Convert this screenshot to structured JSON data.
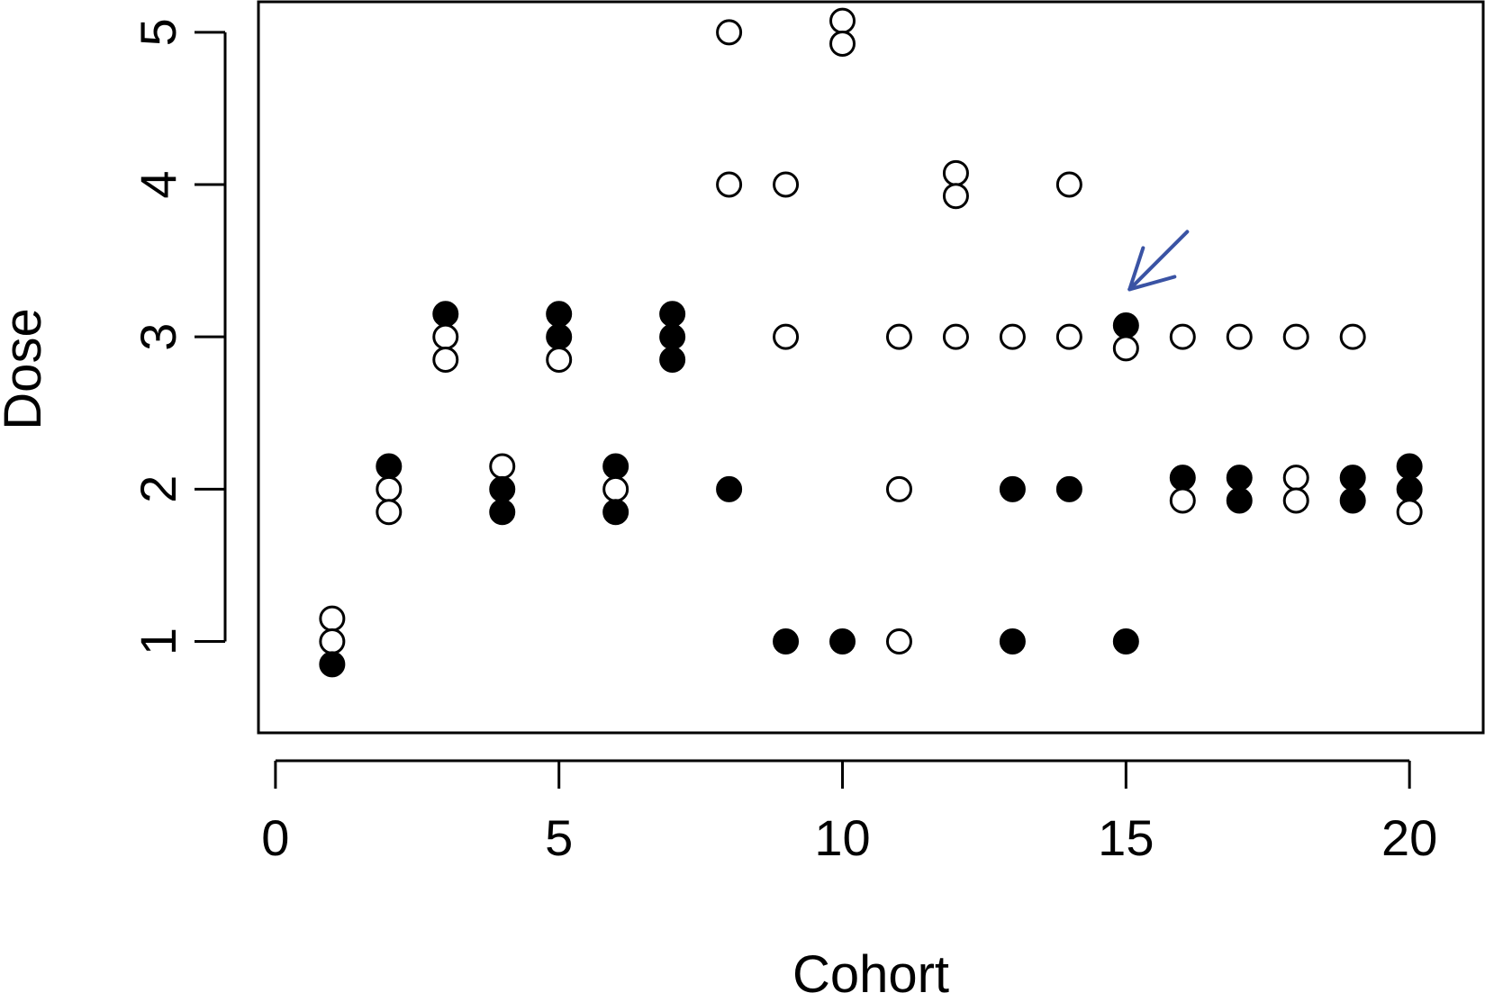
{
  "chart_data": {
    "type": "scatter",
    "title": "",
    "xlabel": "Cohort",
    "ylabel": "Dose",
    "xlim": [
      -0.3,
      21.3
    ],
    "ylim": [
      0.4,
      5.2
    ],
    "x_ticks": [
      0,
      5,
      10,
      15,
      20
    ],
    "x_tick_labels": [
      "0",
      "5",
      "10",
      "15",
      "20"
    ],
    "y_ticks": [
      1,
      2,
      3,
      4,
      5
    ],
    "y_tick_labels": [
      "1",
      "2",
      "3",
      "4",
      "5"
    ],
    "grid": false,
    "legend": "none",
    "colors": {
      "marker": "#000000",
      "arrow": "#3a53a4"
    },
    "marker_encoding": {
      "filled": "filled circle",
      "open": "open circle"
    },
    "cohorts": [
      {
        "cohort": 1,
        "dose": 1,
        "patients": [
          "open",
          "open",
          "filled"
        ]
      },
      {
        "cohort": 2,
        "dose": 2,
        "patients": [
          "filled",
          "open",
          "open"
        ]
      },
      {
        "cohort": 3,
        "dose": 3,
        "patients": [
          "filled",
          "open",
          "open"
        ]
      },
      {
        "cohort": 4,
        "dose": 2,
        "patients": [
          "open",
          "filled",
          "filled"
        ]
      },
      {
        "cohort": 5,
        "dose": 3,
        "patients": [
          "filled",
          "filled",
          "open"
        ]
      },
      {
        "cohort": 6,
        "dose": 2,
        "patients": [
          "filled",
          "open",
          "filled"
        ]
      },
      {
        "cohort": 7,
        "dose": 3,
        "patients": [
          "filled",
          "filled",
          "filled"
        ]
      },
      {
        "cohort": 8,
        "dose": 5,
        "patients": [
          "open"
        ]
      },
      {
        "cohort": 8,
        "dose": 4,
        "patients": [
          "open"
        ]
      },
      {
        "cohort": 8,
        "dose": 2,
        "patients": [
          "filled"
        ]
      },
      {
        "cohort": 9,
        "dose": 4,
        "patients": [
          "open"
        ]
      },
      {
        "cohort": 9,
        "dose": 3,
        "patients": [
          "open"
        ]
      },
      {
        "cohort": 9,
        "dose": 1,
        "patients": [
          "filled"
        ]
      },
      {
        "cohort": 10,
        "dose": 5,
        "patients": [
          "open",
          "open"
        ]
      },
      {
        "cohort": 10,
        "dose": 1,
        "patients": [
          "filled"
        ]
      },
      {
        "cohort": 11,
        "dose": 3,
        "patients": [
          "open"
        ]
      },
      {
        "cohort": 11,
        "dose": 2,
        "patients": [
          "open"
        ]
      },
      {
        "cohort": 11,
        "dose": 1,
        "patients": [
          "open"
        ]
      },
      {
        "cohort": 12,
        "dose": 4,
        "patients": [
          "open",
          "open"
        ]
      },
      {
        "cohort": 12,
        "dose": 3,
        "patients": [
          "open"
        ]
      },
      {
        "cohort": 13,
        "dose": 3,
        "patients": [
          "open"
        ]
      },
      {
        "cohort": 13,
        "dose": 2,
        "patients": [
          "filled"
        ]
      },
      {
        "cohort": 13,
        "dose": 1,
        "patients": [
          "filled"
        ]
      },
      {
        "cohort": 14,
        "dose": 4,
        "patients": [
          "open"
        ]
      },
      {
        "cohort": 14,
        "dose": 3,
        "patients": [
          "open"
        ]
      },
      {
        "cohort": 14,
        "dose": 2,
        "patients": [
          "filled"
        ]
      },
      {
        "cohort": 15,
        "dose": 3,
        "patients": [
          "filled",
          "open"
        ]
      },
      {
        "cohort": 15,
        "dose": 1,
        "patients": [
          "filled"
        ]
      },
      {
        "cohort": 16,
        "dose": 3,
        "patients": [
          "open"
        ]
      },
      {
        "cohort": 16,
        "dose": 2,
        "patients": [
          "filled",
          "open"
        ]
      },
      {
        "cohort": 17,
        "dose": 3,
        "patients": [
          "open"
        ]
      },
      {
        "cohort": 17,
        "dose": 2,
        "patients": [
          "filled",
          "filled"
        ]
      },
      {
        "cohort": 18,
        "dose": 3,
        "patients": [
          "open"
        ]
      },
      {
        "cohort": 18,
        "dose": 2,
        "patients": [
          "open",
          "open"
        ]
      },
      {
        "cohort": 19,
        "dose": 3,
        "patients": [
          "open"
        ]
      },
      {
        "cohort": 19,
        "dose": 2,
        "patients": [
          "filled",
          "filled"
        ]
      },
      {
        "cohort": 20,
        "dose": 2,
        "patients": [
          "filled",
          "filled",
          "open"
        ]
      }
    ],
    "annotations": [
      {
        "type": "arrow",
        "points_to": {
          "cohort": 15,
          "dose": 3,
          "patient": "filled"
        }
      }
    ]
  }
}
